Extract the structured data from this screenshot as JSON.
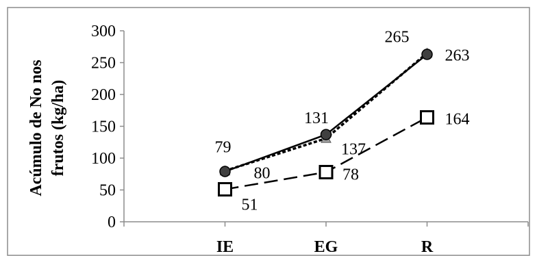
{
  "chart_data": {
    "type": "line",
    "categories": [
      "IE",
      "EG",
      "R"
    ],
    "ylabel_lines": [
      "Acúmulo de No nos",
      "frutos (kg/ha)"
    ],
    "ylim": [
      0,
      300
    ],
    "yticks": [
      0,
      50,
      100,
      150,
      200,
      250,
      300
    ],
    "grid": false,
    "series": [
      {
        "marker": "circle",
        "line_style": "solid",
        "color": "#000000",
        "marker_fill": "#404040",
        "values": [
          79,
          137,
          263
        ],
        "labels": [
          "79",
          "137",
          "263"
        ]
      },
      {
        "marker": "triangle",
        "line_style": "dotted",
        "color": "#000000",
        "marker_fill": "#a0a0a0",
        "values": [
          80,
          131,
          265
        ],
        "labels": [
          "80",
          "131",
          "265"
        ]
      },
      {
        "marker": "square",
        "line_style": "dashed",
        "color": "#000000",
        "marker_fill": "#ffffff",
        "values": [
          51,
          78,
          164
        ],
        "labels": [
          "51",
          "78",
          "164"
        ]
      }
    ]
  }
}
